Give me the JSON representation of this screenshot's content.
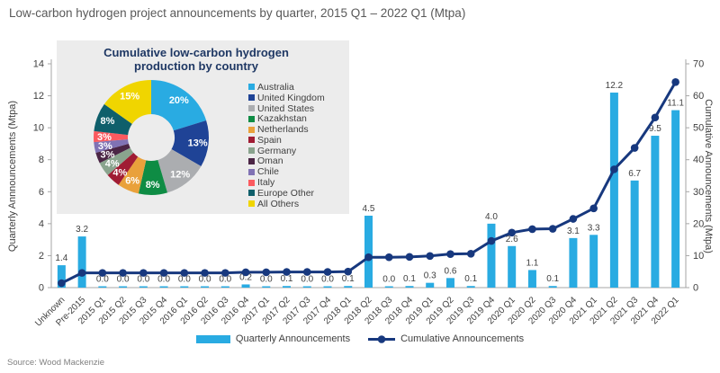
{
  "title": "Low-carbon hydrogen project announcements by quarter, 2015 Q1 – 2022 Q1 (Mtpa)",
  "source": "Source: Wood Mackenzie",
  "legend": {
    "bars_label": "Quarterly Announcements",
    "line_label": "Cumulative Announcements"
  },
  "axes": {
    "left": {
      "label": "Quarterly Annnouncements (Mtpa)",
      "ticks": [
        0,
        2,
        4,
        6,
        8,
        10,
        12,
        14
      ],
      "max": 14
    },
    "right": {
      "label": "Cumulative Announcements (Mtpa)",
      "ticks": [
        0,
        10,
        20,
        30,
        40,
        50,
        60,
        70
      ],
      "max": 70
    }
  },
  "colors": {
    "bar": "#29ABE2",
    "line": "#17387E",
    "axis": "#A6A6A6",
    "tick_text": "#404040",
    "inset_bg": "#ECECEC",
    "inset_title": "#1F3864"
  },
  "chart_data": [
    {
      "type": "bar",
      "subtype": "bar-line-combo",
      "title": "Low-carbon hydrogen project announcements by quarter, 2015 Q1 – 2022 Q1 (Mtpa)",
      "categories": [
        "Unknown",
        "Pre-2015",
        "2015 Q1",
        "2015 Q2",
        "2015 Q3",
        "2015 Q4",
        "2016 Q1",
        "2016 Q2",
        "2016 Q3",
        "2016 Q4",
        "2017 Q1",
        "2017 Q2",
        "2017 Q3",
        "2017 Q4",
        "2018 Q1",
        "2018 Q2",
        "2018 Q3",
        "2018 Q4",
        "2019 Q1",
        "2019 Q2",
        "2019 Q3",
        "2019 Q4",
        "2020 Q1",
        "2020 Q2",
        "2020 Q3",
        "2020 Q4",
        "2021 Q1",
        "2021 Q2",
        "2021 Q3",
        "2021 Q4",
        "2022 Q1"
      ],
      "series": [
        {
          "name": "Quarterly Announcements",
          "type": "bar",
          "axis": "left",
          "color": "#29ABE2",
          "values": [
            1.4,
            3.2,
            0.0,
            0.0,
            0.0,
            0.0,
            0.0,
            0.0,
            0.0,
            0.2,
            0.0,
            0.1,
            0.0,
            0.0,
            0.1,
            4.5,
            0.0,
            0.1,
            0.3,
            0.6,
            0.1,
            4.0,
            2.6,
            1.1,
            0.1,
            3.1,
            3.3,
            12.2,
            6.7,
            9.5,
            11.1
          ],
          "value_labels": [
            "1.4",
            "3.2",
            "0.0",
            "0.0",
            "0.0",
            "0.0",
            "0.0",
            "0.0",
            "0.0",
            "0.2",
            "0.0",
            "0.1",
            "0.0",
            "0.0",
            "0.1",
            "4.5",
            "0.0",
            "0.1",
            "0.3",
            "0.6",
            "0.1",
            "4.0",
            "2.6",
            "1.1",
            "0.1",
            "3.1",
            "3.3",
            "12.2",
            "6.7",
            "9.5",
            "11.1"
          ]
        },
        {
          "name": "Cumulative Announcements",
          "type": "line",
          "axis": "right",
          "color": "#17387E",
          "values": [
            1.4,
            4.6,
            4.6,
            4.6,
            4.6,
            4.6,
            4.6,
            4.6,
            4.6,
            4.8,
            4.8,
            4.9,
            4.9,
            4.9,
            5.0,
            9.5,
            9.5,
            9.6,
            9.9,
            10.5,
            10.6,
            14.6,
            17.2,
            18.3,
            18.4,
            21.5,
            24.8,
            37.0,
            43.7,
            53.2,
            64.3
          ]
        }
      ],
      "ylabel_left": "Quarterly Annnouncements (Mtpa)",
      "ylabel_right": "Cumulative Announcements (Mtpa)",
      "ylim_left": [
        0,
        14
      ],
      "ylim_right": [
        0,
        70
      ],
      "grid": false,
      "legend_position": "bottom"
    },
    {
      "type": "pie",
      "subtype": "donut",
      "title": "Cumulative low-carbon hydrogen production by country",
      "categories": [
        "Australia",
        "United Kingdom",
        "United States",
        "Kazakhstan",
        "Netherlands",
        "Spain",
        "Germany",
        "Oman",
        "Chile",
        "Italy",
        "Europe Other",
        "All Others"
      ],
      "values": [
        20,
        13,
        12,
        8,
        6,
        4,
        4,
        3,
        3,
        3,
        8,
        15
      ],
      "slice_labels": [
        "20%",
        "13%",
        "12%",
        "8%",
        "6%",
        "4%",
        "4%",
        "3%",
        "3%",
        "3%",
        "8%",
        "15%"
      ],
      "colors": [
        "#29ABE2",
        "#1F4396",
        "#ABADB0",
        "#0E8C44",
        "#E9A13B",
        "#A01C33",
        "#8AA48E",
        "#4B2545",
        "#8072B4",
        "#FB5A5F",
        "#0F5F6B",
        "#F0D500"
      ],
      "legend_position": "right"
    }
  ]
}
